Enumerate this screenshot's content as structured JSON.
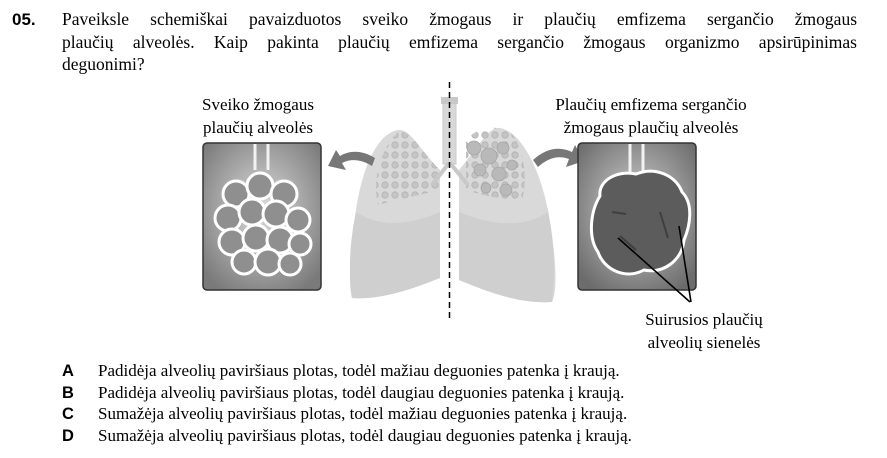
{
  "question": {
    "number": "05.",
    "lines": [
      "Paveiksle schemiškai pavaizduotos sveiko žmogaus ir plaučių emfizema sergančio žmogaus",
      "plaučių alveolės. Kaip pakinta plaučių emfizema sergančio žmogaus organizmo apsirūpinimas",
      "deguonimi?"
    ]
  },
  "figure": {
    "healthy_label": [
      "Sveiko žmogaus",
      "plaučių alveolės"
    ],
    "emphysema_label": [
      "Plaučių emfizema sergančio",
      "žmogaus plaučių alveolės"
    ],
    "walls_label": [
      "Suirusios plaučių",
      "alveolių sienelės"
    ]
  },
  "answers": [
    {
      "letter": "A",
      "text": "Padidėja alveolių paviršiaus plotas, todėl mažiau deguonies patenka į kraują."
    },
    {
      "letter": "B",
      "text": "Padidėja alveolių paviršiaus plotas, todėl daugiau deguonies patenka į kraują."
    },
    {
      "letter": "C",
      "text": "Sumažėja alveolių paviršiaus plotas, todėl mažiau deguonies patenka į kraują."
    },
    {
      "letter": "D",
      "text": "Sumažėja alveolių paviršiaus plotas, todėl daugiau deguonies patenka į kraują."
    }
  ]
}
